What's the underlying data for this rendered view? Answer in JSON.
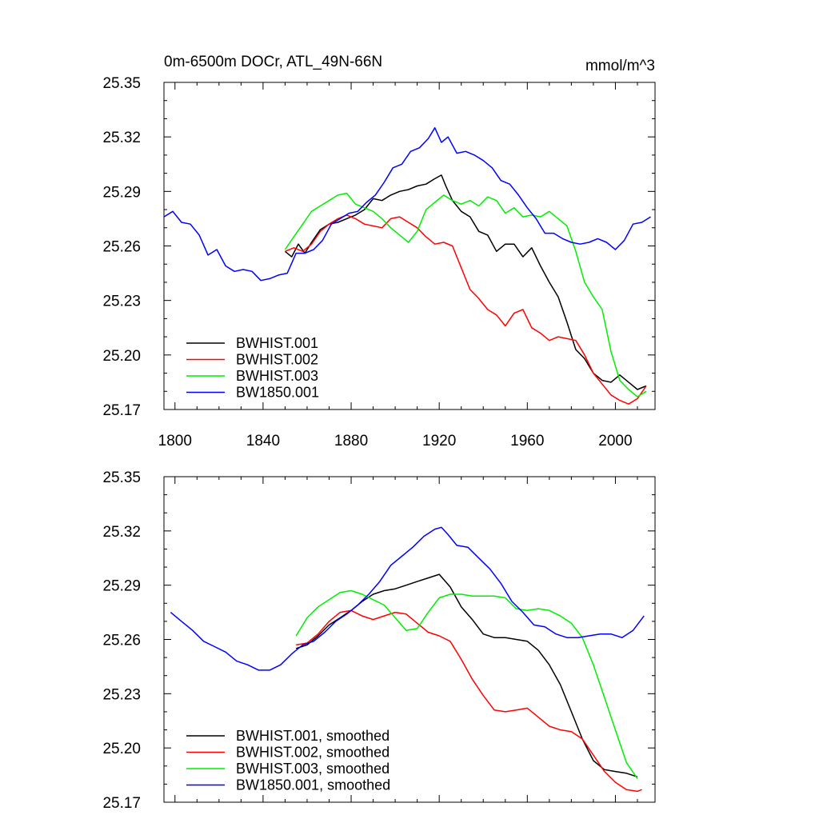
{
  "header": {
    "title": "0m-6500m DOCr, ATL_49N-66N",
    "units": "mmol/m^3"
  },
  "colors": {
    "BWHIST.001": "#000000",
    "BWHIST.002": "#ff0000",
    "BWHIST.003": "#00ee00",
    "BW1850.001": "#0000ff"
  },
  "chart_data": [
    {
      "type": "line",
      "title": "0m-6500m DOCr, ATL_49N-66N",
      "subtitle_right": "mmol/m^3",
      "xlim": [
        1795,
        2018
      ],
      "ylim": [
        25.17,
        25.35
      ],
      "xticks": [
        1800,
        1840,
        1880,
        1920,
        1960,
        2000
      ],
      "yticks": [
        25.17,
        25.2,
        25.23,
        25.26,
        25.29,
        25.32,
        25.35
      ],
      "ytick_labels": [
        "25.17",
        "25.20",
        "25.23",
        "25.26",
        "25.29",
        "25.32",
        "25.35"
      ],
      "legend_position": "bottom-left",
      "series": [
        {
          "name": "BWHIST.001",
          "color": "#000000",
          "x": [
            1850,
            1853,
            1856,
            1859,
            1862,
            1866,
            1870,
            1874,
            1878,
            1882,
            1886,
            1890,
            1894,
            1898,
            1902,
            1906,
            1910,
            1914,
            1918,
            1921,
            1923,
            1926,
            1930,
            1934,
            1938,
            1942,
            1946,
            1950,
            1954,
            1958,
            1962,
            1966,
            1970,
            1974,
            1978,
            1982,
            1986,
            1990,
            1994,
            1998,
            2002,
            2006,
            2010,
            2014
          ],
          "y": [
            25.257,
            25.254,
            25.261,
            25.256,
            25.262,
            25.269,
            25.272,
            25.273,
            25.275,
            25.277,
            25.28,
            25.286,
            25.285,
            25.288,
            25.29,
            25.291,
            25.293,
            25.294,
            25.297,
            25.299,
            25.293,
            25.285,
            25.279,
            25.276,
            25.268,
            25.266,
            25.257,
            25.261,
            25.261,
            25.254,
            25.259,
            25.249,
            25.24,
            25.232,
            25.218,
            25.203,
            25.198,
            25.19,
            25.186,
            25.185,
            25.189,
            25.185,
            25.181,
            25.183
          ]
        },
        {
          "name": "BWHIST.002",
          "color": "#ff0000",
          "x": [
            1850,
            1854,
            1858,
            1862,
            1866,
            1870,
            1874,
            1878,
            1882,
            1886,
            1890,
            1894,
            1898,
            1902,
            1906,
            1910,
            1914,
            1918,
            1922,
            1926,
            1930,
            1934,
            1938,
            1942,
            1946,
            1950,
            1954,
            1958,
            1962,
            1966,
            1970,
            1974,
            1978,
            1982,
            1986,
            1990,
            1994,
            1998,
            2002,
            2006,
            2010,
            2014
          ],
          "y": [
            25.257,
            25.259,
            25.257,
            25.261,
            25.268,
            25.272,
            25.275,
            25.277,
            25.275,
            25.272,
            25.271,
            25.27,
            25.275,
            25.276,
            25.273,
            25.27,
            25.265,
            25.261,
            25.262,
            25.26,
            25.248,
            25.236,
            25.231,
            25.225,
            25.222,
            25.216,
            25.223,
            25.225,
            25.215,
            25.212,
            25.208,
            25.21,
            25.209,
            25.208,
            25.2,
            25.19,
            25.184,
            25.178,
            25.175,
            25.173,
            25.176,
            25.183
          ]
        },
        {
          "name": "BWHIST.003",
          "color": "#00ee00",
          "x": [
            1850,
            1854,
            1858,
            1862,
            1866,
            1870,
            1874,
            1878,
            1882,
            1886,
            1890,
            1894,
            1898,
            1902,
            1906,
            1910,
            1914,
            1918,
            1922,
            1926,
            1930,
            1934,
            1938,
            1942,
            1946,
            1950,
            1954,
            1958,
            1962,
            1966,
            1970,
            1974,
            1978,
            1982,
            1986,
            1990,
            1994,
            1998,
            2002,
            2006,
            2010,
            2014
          ],
          "y": [
            25.258,
            25.265,
            25.272,
            25.279,
            25.282,
            25.285,
            25.288,
            25.289,
            25.283,
            25.281,
            25.279,
            25.275,
            25.27,
            25.266,
            25.262,
            25.268,
            25.28,
            25.284,
            25.288,
            25.285,
            25.283,
            25.285,
            25.282,
            25.287,
            25.285,
            25.278,
            25.281,
            25.276,
            25.277,
            25.276,
            25.279,
            25.275,
            25.271,
            25.257,
            25.24,
            25.232,
            25.225,
            25.202,
            25.186,
            25.181,
            25.177,
            25.18
          ]
        },
        {
          "name": "BW1850.001",
          "color": "#0000ff",
          "x": [
            1795,
            1799,
            1803,
            1807,
            1811,
            1815,
            1819,
            1823,
            1827,
            1831,
            1835,
            1839,
            1843,
            1847,
            1851,
            1855,
            1859,
            1863,
            1867,
            1871,
            1875,
            1879,
            1883,
            1887,
            1891,
            1895,
            1899,
            1903,
            1907,
            1911,
            1915,
            1918,
            1921,
            1924,
            1928,
            1932,
            1936,
            1940,
            1944,
            1948,
            1952,
            1956,
            1960,
            1964,
            1968,
            1972,
            1976,
            1980,
            1984,
            1988,
            1992,
            1996,
            2000,
            2004,
            2008,
            2012,
            2016
          ],
          "y": [
            25.276,
            25.279,
            25.273,
            25.272,
            25.266,
            25.255,
            25.258,
            25.249,
            25.246,
            25.247,
            25.246,
            25.241,
            25.242,
            25.244,
            25.245,
            25.256,
            25.256,
            25.258,
            25.263,
            25.272,
            25.275,
            25.278,
            25.279,
            25.284,
            25.288,
            25.295,
            25.303,
            25.305,
            25.312,
            25.314,
            25.319,
            25.325,
            25.317,
            25.32,
            25.311,
            25.312,
            25.31,
            25.307,
            25.303,
            25.296,
            25.294,
            25.288,
            25.281,
            25.275,
            25.267,
            25.267,
            25.264,
            25.262,
            25.261,
            25.262,
            25.264,
            25.262,
            25.258,
            25.263,
            25.272,
            25.273,
            25.276
          ]
        }
      ]
    },
    {
      "type": "line",
      "xlim": [
        1795,
        2018
      ],
      "ylim": [
        25.17,
        25.35
      ],
      "xticks": [
        1800,
        1840,
        1880,
        1920,
        1960,
        2000
      ],
      "yticks": [
        25.17,
        25.2,
        25.23,
        25.26,
        25.29,
        25.32,
        25.35
      ],
      "ytick_labels": [
        "25.17",
        "25.20",
        "25.23",
        "25.26",
        "25.29",
        "25.32",
        "25.35"
      ],
      "legend_position": "bottom-left",
      "series": [
        {
          "name": "BWHIST.001, smoothed",
          "color": "#000000",
          "x": [
            1855,
            1860,
            1865,
            1870,
            1875,
            1880,
            1885,
            1890,
            1895,
            1900,
            1905,
            1910,
            1915,
            1920,
            1925,
            1930,
            1935,
            1940,
            1945,
            1950,
            1955,
            1960,
            1965,
            1970,
            1975,
            1980,
            1985,
            1990,
            1995,
            2000,
            2005,
            2010
          ],
          "y": [
            25.255,
            25.257,
            25.262,
            25.268,
            25.272,
            25.276,
            25.281,
            25.285,
            25.287,
            25.288,
            25.29,
            25.292,
            25.294,
            25.296,
            25.289,
            25.278,
            25.271,
            25.263,
            25.261,
            25.261,
            25.26,
            25.259,
            25.254,
            25.246,
            25.235,
            25.22,
            25.205,
            25.193,
            25.188,
            25.187,
            25.186,
            25.184
          ]
        },
        {
          "name": "BWHIST.002, smoothed",
          "color": "#ff0000",
          "x": [
            1855,
            1860,
            1865,
            1870,
            1875,
            1880,
            1885,
            1890,
            1895,
            1900,
            1905,
            1910,
            1915,
            1920,
            1925,
            1930,
            1935,
            1940,
            1945,
            1950,
            1955,
            1960,
            1965,
            1970,
            1975,
            1980,
            1985,
            1990,
            1995,
            2000,
            2005,
            2010,
            2012
          ],
          "y": [
            25.257,
            25.258,
            25.263,
            25.27,
            25.275,
            25.276,
            25.273,
            25.271,
            25.273,
            25.275,
            25.274,
            25.269,
            25.264,
            25.262,
            25.259,
            25.249,
            25.238,
            25.229,
            25.221,
            25.22,
            25.221,
            25.222,
            25.217,
            25.212,
            25.21,
            25.209,
            25.205,
            25.196,
            25.187,
            25.181,
            25.177,
            25.176,
            25.177
          ]
        },
        {
          "name": "BWHIST.003, smoothed",
          "color": "#00ee00",
          "x": [
            1855,
            1860,
            1865,
            1870,
            1875,
            1880,
            1885,
            1890,
            1895,
            1900,
            1905,
            1910,
            1915,
            1920,
            1925,
            1930,
            1935,
            1940,
            1945,
            1950,
            1955,
            1960,
            1965,
            1970,
            1975,
            1980,
            1985,
            1990,
            1995,
            2000,
            2005,
            2010
          ],
          "y": [
            25.262,
            25.272,
            25.278,
            25.282,
            25.286,
            25.287,
            25.285,
            25.282,
            25.279,
            25.272,
            25.265,
            25.266,
            25.275,
            25.283,
            25.285,
            25.285,
            25.284,
            25.284,
            25.284,
            25.283,
            25.277,
            25.276,
            25.277,
            25.276,
            25.273,
            25.269,
            25.261,
            25.246,
            25.228,
            25.21,
            25.192,
            25.183
          ]
        },
        {
          "name": "BW1850.001, smoothed",
          "color": "#0000ff",
          "x": [
            1798,
            1803,
            1808,
            1813,
            1818,
            1823,
            1828,
            1833,
            1838,
            1843,
            1848,
            1853,
            1858,
            1863,
            1868,
            1873,
            1878,
            1883,
            1888,
            1893,
            1898,
            1903,
            1908,
            1913,
            1918,
            1921,
            1924,
            1928,
            1933,
            1938,
            1943,
            1948,
            1953,
            1958,
            1963,
            1968,
            1973,
            1978,
            1983,
            1988,
            1993,
            1998,
            2003,
            2008,
            2013
          ],
          "y": [
            25.275,
            25.27,
            25.265,
            25.259,
            25.256,
            25.253,
            25.248,
            25.246,
            25.243,
            25.243,
            25.246,
            25.252,
            25.257,
            25.259,
            25.264,
            25.27,
            25.274,
            25.279,
            25.285,
            25.292,
            25.301,
            25.306,
            25.311,
            25.317,
            25.321,
            25.322,
            25.318,
            25.312,
            25.311,
            25.305,
            25.299,
            25.291,
            25.281,
            25.275,
            25.268,
            25.267,
            25.263,
            25.261,
            25.261,
            25.262,
            25.263,
            25.263,
            25.261,
            25.265,
            25.273
          ]
        }
      ]
    }
  ]
}
